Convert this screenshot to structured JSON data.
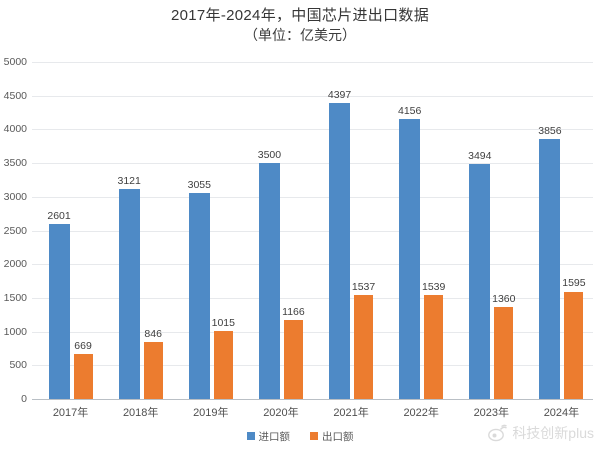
{
  "title": "2017年-2024年，中国芯片进出口数据",
  "subtitle": "（单位：亿美元）",
  "watermark": {
    "text": "科技创新plus",
    "icon": "weibo-icon"
  },
  "colors": {
    "import_bar": "#4e8ac6",
    "export_bar": "#ec7c2f",
    "gridline": "#e7e9ec",
    "baseline": "#b9bfc5",
    "value_label": "#3f3f3f",
    "axis_text": "#595959"
  },
  "chart_data": {
    "type": "bar",
    "title": "2017年-2024年，中国芯片进出口数据",
    "subtitle": "（单位：亿美元）",
    "categories": [
      "2017年",
      "2018年",
      "2019年",
      "2020年",
      "2021年",
      "2022年",
      "2023年",
      "2024年"
    ],
    "series": [
      {
        "name": "进口额",
        "color": "#4e8ac6",
        "values": [
          2601,
          3121,
          3055,
          3500,
          4397,
          4156,
          3494,
          3856
        ]
      },
      {
        "name": "出口额",
        "color": "#ec7c2f",
        "values": [
          669,
          846,
          1015,
          1166,
          1537,
          1539,
          1360,
          1595
        ]
      }
    ],
    "xlabel": "",
    "ylabel": "",
    "ylim": [
      0,
      5000
    ],
    "ytick_step": 500,
    "grid": true,
    "legend_position": "bottom",
    "value_labels": true
  }
}
